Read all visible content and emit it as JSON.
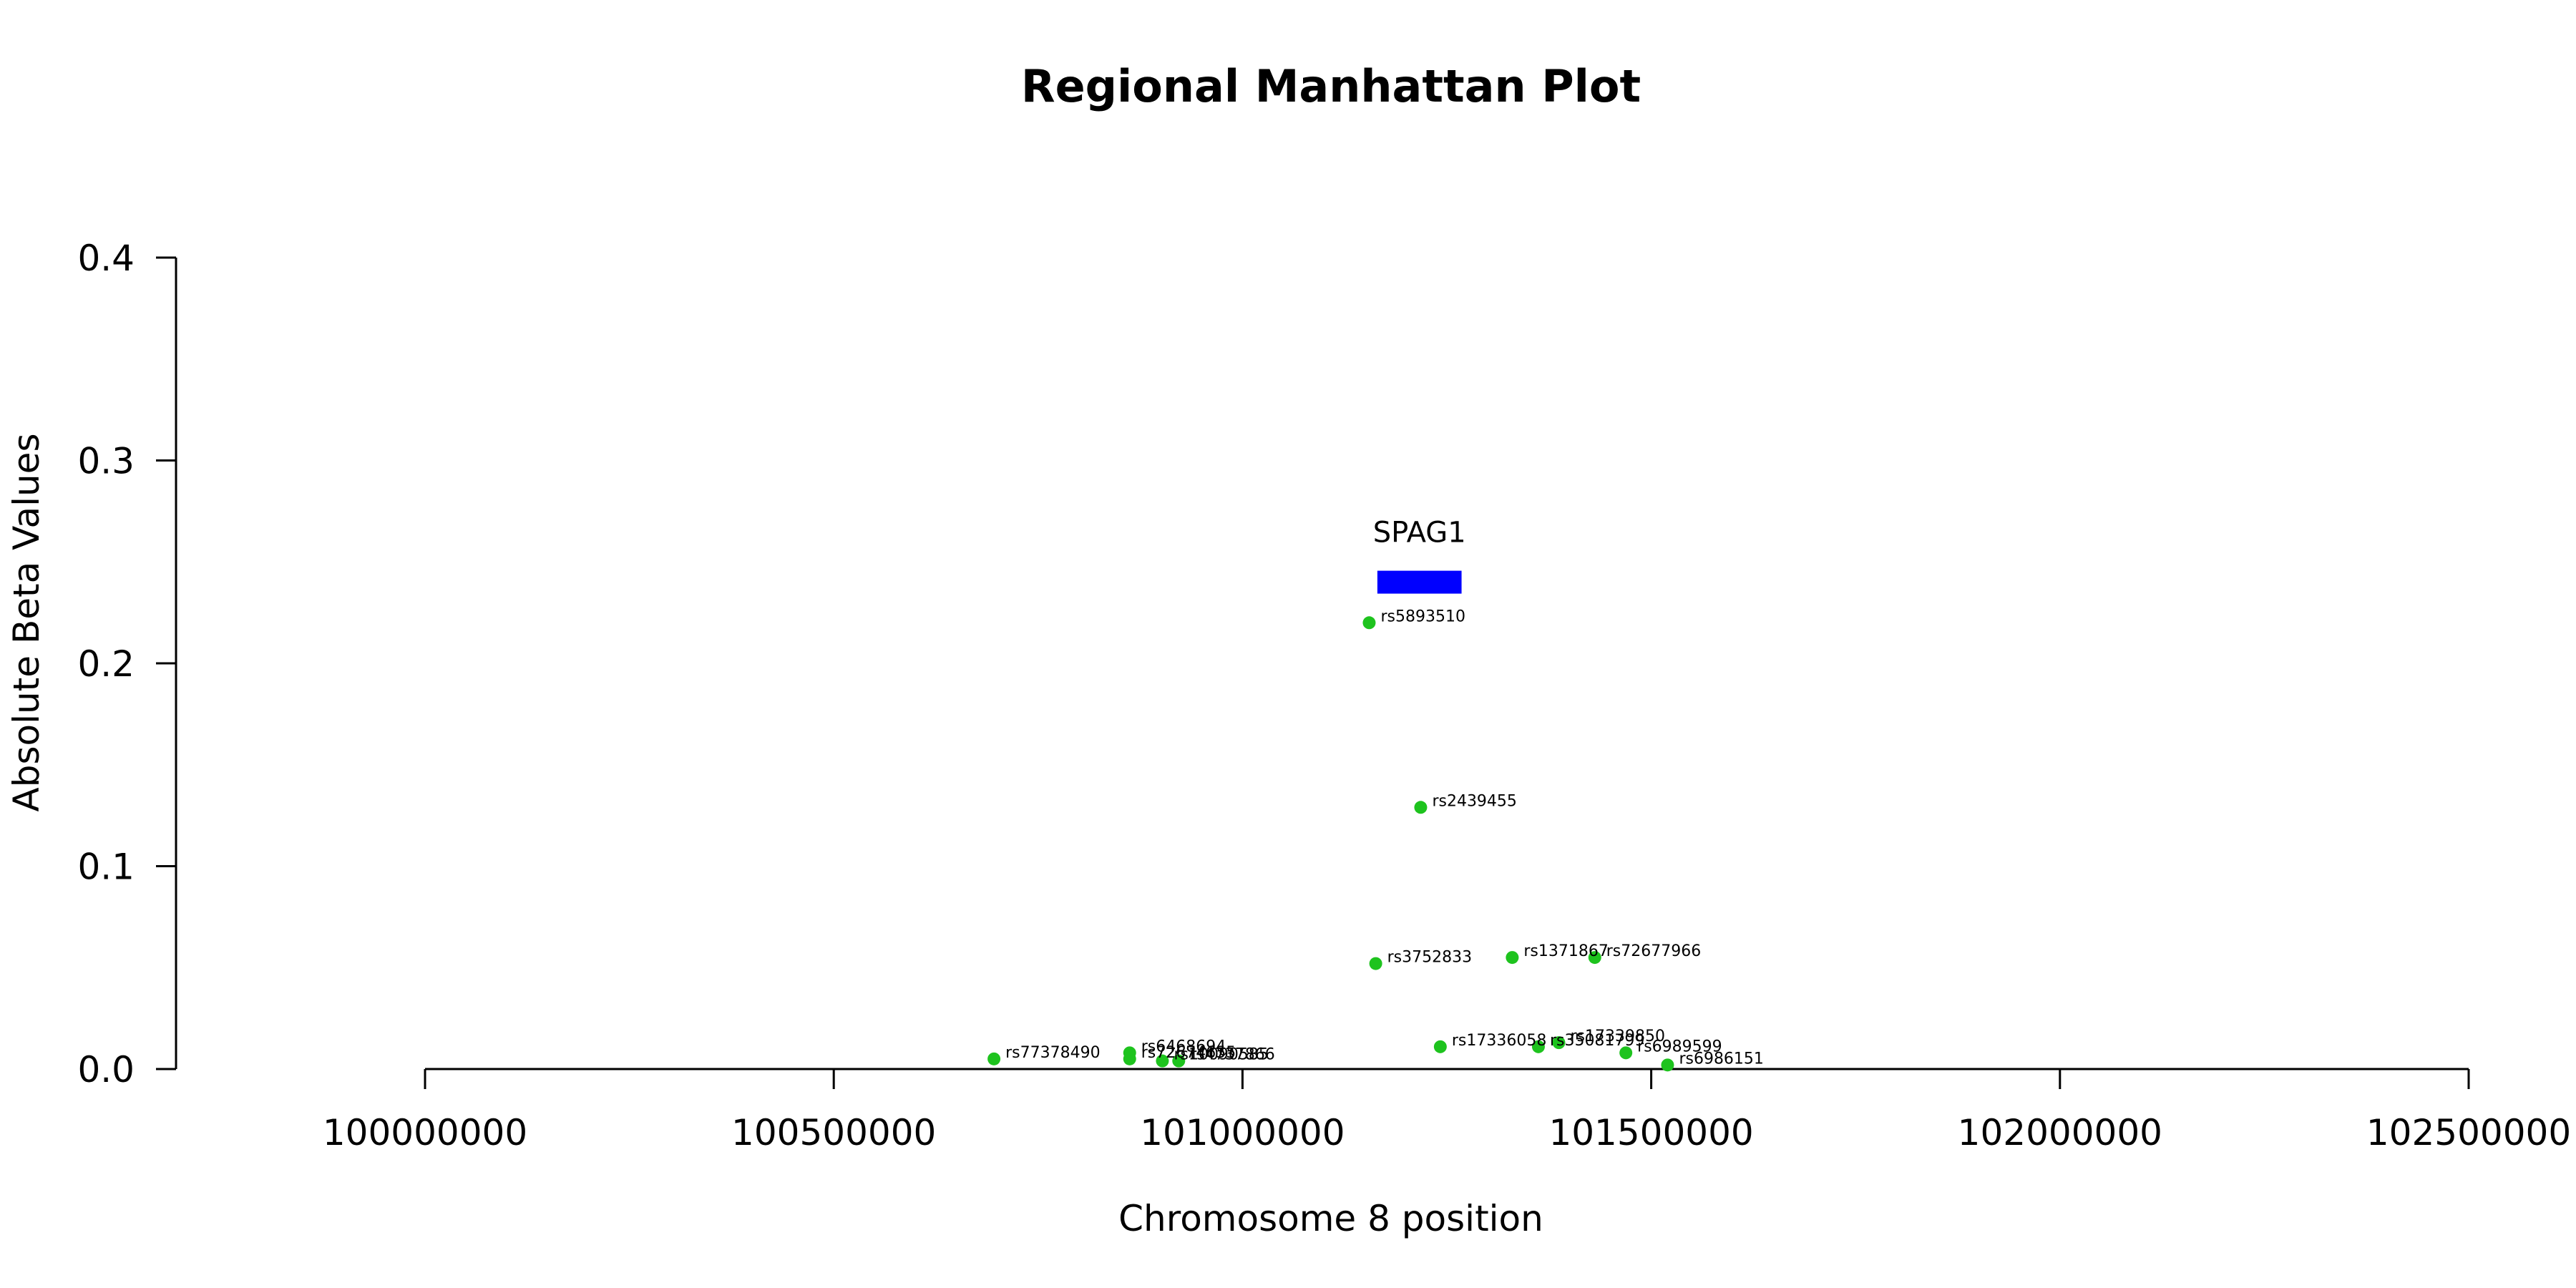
{
  "chart_data": {
    "type": "scatter",
    "title": "Regional Manhattan Plot",
    "xlabel": "Chromosome 8 position",
    "ylabel": "Absolute Beta Values",
    "xlim": [
      100000000,
      102500000
    ],
    "ylim": [
      0,
      0.4
    ],
    "x_ticks": [
      100000000,
      100500000,
      101000000,
      101500000,
      102000000,
      102500000
    ],
    "x_tick_labels": [
      "100000000",
      "100500000",
      "101000000",
      "101500000",
      "102000000",
      "102500000"
    ],
    "y_ticks": [
      0,
      0.1,
      0.2,
      0.3,
      0.4
    ],
    "y_tick_labels": [
      "0.0",
      "0.1",
      "0.2",
      "0.3",
      "0.4"
    ],
    "point_color": "#1ec31e",
    "gene_color": "#0000ff",
    "genes": [
      {
        "name": "SPAG1",
        "start": 101165000,
        "end": 101268000,
        "y": 0.24
      }
    ],
    "series": [
      {
        "points": [
          {
            "snp": "rs5893510",
            "x": 101155000,
            "y": 0.22
          },
          {
            "snp": "rs2439455",
            "x": 101218000,
            "y": 0.129
          },
          {
            "snp": "rs3752833",
            "x": 101163000,
            "y": 0.052
          },
          {
            "snp": "rs1371867",
            "x": 101330000,
            "y": 0.055
          },
          {
            "snp": "rs72677966",
            "x": 101431000,
            "y": 0.055
          },
          {
            "snp": "rs77378490",
            "x": 100696000,
            "y": 0.005
          },
          {
            "snp": "rs6468694",
            "x": 100862000,
            "y": 0.008
          },
          {
            "snp": "rs72674655",
            "x": 100862000,
            "y": 0.005
          },
          {
            "snp": "rs10090585",
            "x": 100902000,
            "y": 0.004
          },
          {
            "snp": "rs4737866",
            "x": 100922000,
            "y": 0.004
          },
          {
            "snp": "rs17336058",
            "x": 101242000,
            "y": 0.011
          },
          {
            "snp": "rs35081799",
            "x": 101362000,
            "y": 0.011
          },
          {
            "snp": "rs17339850",
            "x": 101387000,
            "y": 0.013
          },
          {
            "snp": "rs6989599",
            "x": 101469000,
            "y": 0.008
          },
          {
            "snp": "rs6986151",
            "x": 101520000,
            "y": 0.002
          }
        ]
      }
    ]
  }
}
